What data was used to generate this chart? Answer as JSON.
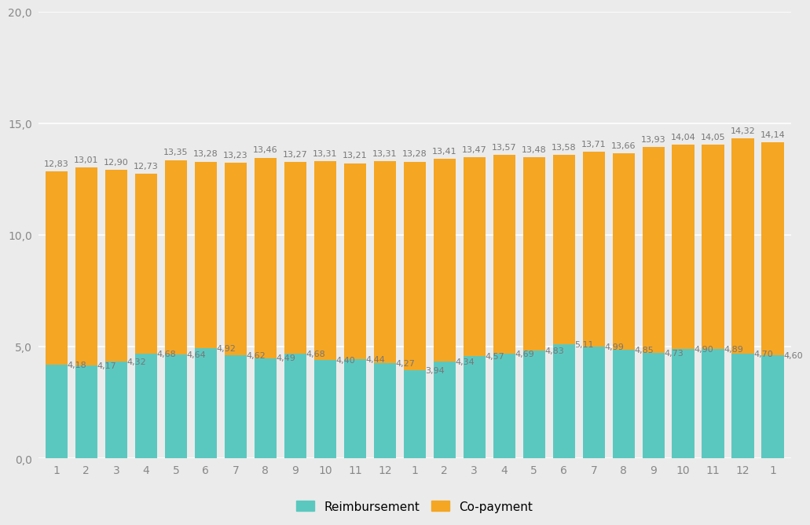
{
  "categories": [
    "1",
    "2",
    "3",
    "4",
    "5",
    "6",
    "7",
    "8",
    "9",
    "10",
    "11",
    "12",
    "1",
    "2",
    "3",
    "4",
    "5",
    "6",
    "7",
    "8",
    "9",
    "10",
    "11",
    "12",
    "1"
  ],
  "reimbursement": [
    4.18,
    4.17,
    4.32,
    4.68,
    4.64,
    4.92,
    4.62,
    4.49,
    4.68,
    4.4,
    4.44,
    4.27,
    3.94,
    4.34,
    4.57,
    4.69,
    4.83,
    5.11,
    4.99,
    4.85,
    4.73,
    4.9,
    4.89,
    4.7,
    4.6
  ],
  "copayment_total": [
    12.83,
    13.01,
    12.9,
    12.73,
    13.35,
    13.28,
    13.23,
    13.46,
    13.27,
    13.31,
    13.21,
    13.31,
    13.28,
    13.41,
    13.47,
    13.57,
    13.48,
    13.58,
    13.71,
    13.66,
    13.93,
    14.04,
    14.05,
    14.32,
    14.14
  ],
  "reimbursement_labels": [
    "4,18",
    "4,17",
    "4,32",
    "4,68",
    "4,64",
    "4,92",
    "4,62",
    "4,49",
    "4,68",
    "4,40",
    "4,44",
    "4,27",
    "3,94",
    "4,34",
    "4,57",
    "4,69",
    "4,83",
    "5,11",
    "4,99",
    "4,85",
    "4,73",
    "4,90",
    "4,89",
    "4,70",
    "4,60"
  ],
  "copayment_labels": [
    "12,83",
    "13,01",
    "12,90",
    "12,73",
    "13,35",
    "13,28",
    "13,23",
    "13,46",
    "13,27",
    "13,31",
    "13,21",
    "13,31",
    "13,28",
    "13,41",
    "13,47",
    "13,57",
    "13,48",
    "13,58",
    "13,71",
    "13,66",
    "13,93",
    "14,04",
    "14,05",
    "14,32",
    "14,14"
  ],
  "reimbursement_color": "#5BC8C0",
  "copayment_color": "#F5A623",
  "background_color": "#EBEBEB",
  "ylim": [
    0,
    20
  ],
  "yticks": [
    0,
    5,
    10,
    15,
    20
  ],
  "ytick_labels": [
    "0,0",
    "5,0",
    "10,0",
    "15,0",
    "20,0"
  ],
  "legend_reimbursement": "Reimbursement",
  "legend_copayment": "Co-payment",
  "label_fontsize": 8.0,
  "tick_fontsize": 10,
  "legend_fontsize": 11
}
